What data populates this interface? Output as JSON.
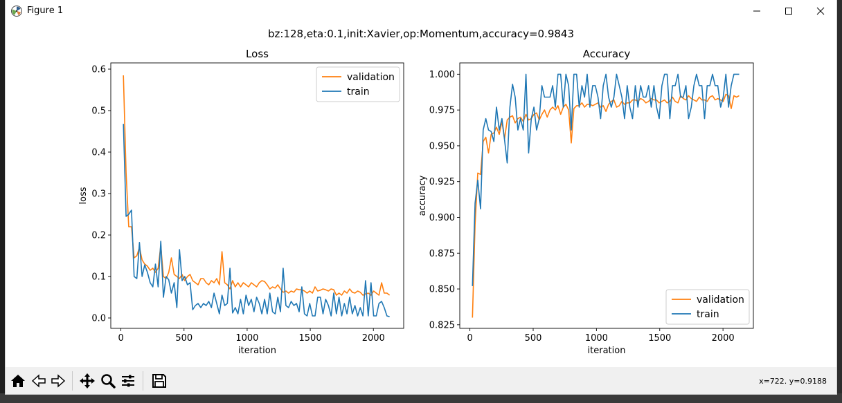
{
  "window": {
    "title": "Figure 1",
    "minimize_icon": "minimize-icon",
    "maximize_icon": "maximize-icon",
    "close_icon": "close-icon"
  },
  "figure": {
    "suptitle": "bz:128,eta:0.1,init:Xavier,op:Momentum,accuracy=0.9843"
  },
  "toolbar": {
    "buttons": [
      "home-icon",
      "back-icon",
      "forward-icon",
      "pan-icon",
      "zoom-icon",
      "configure-subplots-icon",
      "save-icon"
    ],
    "coordinates": "x=722. y=0.9188"
  },
  "colors": {
    "validation": "#ff7f0e",
    "train": "#1f77b4"
  },
  "chart_data": [
    {
      "type": "line",
      "title": "Loss",
      "xlabel": "iteration",
      "ylabel": "loss",
      "xlim": [
        -80,
        2240
      ],
      "ylim": [
        -0.025,
        0.615
      ],
      "xticks": [
        0,
        500,
        1000,
        1500,
        2000
      ],
      "yticks": [
        0.0,
        0.1,
        0.2,
        0.3,
        0.4,
        0.5,
        0.6
      ],
      "ytick_labels": [
        "0.0",
        "0.1",
        "0.2",
        "0.3",
        "0.4",
        "0.5",
        "0.6"
      ],
      "legend": "top-right",
      "grid": false,
      "x": [
        20,
        41,
        62,
        84,
        105,
        126,
        147,
        168,
        189,
        210,
        232,
        253,
        274,
        295,
        316,
        337,
        358,
        379,
        400,
        422,
        443,
        464,
        485,
        506,
        527,
        548,
        569,
        590,
        611,
        633,
        654,
        675,
        696,
        717,
        738,
        759,
        780,
        801,
        822,
        843,
        864,
        885,
        906,
        927,
        948,
        970,
        991,
        1012,
        1033,
        1054,
        1075,
        1096,
        1117,
        1138,
        1159,
        1180,
        1201,
        1222,
        1243,
        1264,
        1285,
        1307,
        1328,
        1349,
        1370,
        1391,
        1412,
        1433,
        1454,
        1475,
        1496,
        1517,
        1538,
        1559,
        1580,
        1601,
        1622,
        1644,
        1665,
        1686,
        1707,
        1728,
        1749,
        1770,
        1791,
        1812,
        1833,
        1854,
        1875,
        1896,
        1917,
        1938,
        1959,
        1981,
        2002,
        2023,
        2044,
        2065,
        2086,
        2107,
        2128
      ],
      "series": [
        {
          "name": "validation",
          "values": [
            0.585,
            0.35,
            0.22,
            0.22,
            0.145,
            0.15,
            0.17,
            0.14,
            0.13,
            0.125,
            0.115,
            0.12,
            0.11,
            0.12,
            0.175,
            0.1,
            0.095,
            0.11,
            0.145,
            0.105,
            0.1,
            0.095,
            0.105,
            0.09,
            0.1,
            0.105,
            0.09,
            0.085,
            0.08,
            0.095,
            0.095,
            0.085,
            0.08,
            0.09,
            0.085,
            0.095,
            0.08,
            0.16,
            0.085,
            0.08,
            0.07,
            0.09,
            0.075,
            0.085,
            0.075,
            0.085,
            0.08,
            0.075,
            0.085,
            0.08,
            0.075,
            0.085,
            0.09,
            0.088,
            0.08,
            0.07,
            0.075,
            0.072,
            0.08,
            0.07,
            0.062,
            0.065,
            0.06,
            0.065,
            0.062,
            0.07,
            0.068,
            0.068,
            0.065,
            0.06,
            0.065,
            0.06,
            0.075,
            0.065,
            0.067,
            0.07,
            0.068,
            0.065,
            0.07,
            0.068,
            0.055,
            0.06,
            0.055,
            0.065,
            0.06,
            0.07,
            0.062,
            0.06,
            0.065,
            0.062,
            0.055,
            0.058,
            0.06,
            0.055,
            0.065,
            0.06,
            0.055,
            0.085,
            0.06,
            0.06,
            0.055
          ]
        },
        {
          "name": "train",
          "values": [
            0.468,
            0.245,
            0.25,
            0.26,
            0.1,
            0.095,
            0.182,
            0.1,
            0.128,
            0.11,
            0.085,
            0.075,
            0.13,
            0.075,
            0.185,
            0.05,
            0.1,
            0.092,
            0.06,
            0.085,
            0.025,
            0.165,
            0.09,
            0.1,
            0.08,
            0.085,
            0.02,
            0.03,
            0.035,
            0.025,
            0.035,
            0.03,
            0.04,
            0.025,
            0.06,
            0.035,
            0.01,
            0.055,
            0.03,
            0.035,
            0.12,
            0.012,
            0.025,
            0.01,
            0.045,
            0.01,
            0.055,
            0.03,
            0.045,
            0.015,
            0.05,
            0.035,
            0.01,
            0.045,
            0.01,
            0.06,
            0.015,
            0.01,
            0.05,
            0.015,
            0.12,
            0.03,
            0.025,
            0.04,
            0.03,
            0.035,
            0.015,
            0.075,
            0.01,
            0.005,
            0.035,
            0.005,
            0.005,
            0.05,
            0.05,
            0.01,
            0.045,
            0.03,
            0.005,
            0.06,
            0.01,
            0.05,
            0.005,
            0.035,
            0.01,
            0.05,
            0.01,
            0.03,
            0.005,
            0.025,
            0.005,
            0.09,
            0.005,
            0.085,
            0.005,
            0.005,
            0.035,
            0.04,
            0.025,
            0.005,
            0.003
          ]
        }
      ]
    },
    {
      "type": "line",
      "title": "Accuracy",
      "xlabel": "iteration",
      "ylabel": "accuracy",
      "xlim": [
        -80,
        2240
      ],
      "ylim": [
        0.8225,
        1.0079
      ],
      "xticks": [
        0,
        500,
        1000,
        1500,
        2000
      ],
      "yticks": [
        0.825,
        0.85,
        0.875,
        0.9,
        0.925,
        0.95,
        0.975,
        1.0
      ],
      "ytick_labels": [
        "0.825",
        "0.850",
        "0.875",
        "0.900",
        "0.925",
        "0.950",
        "0.975",
        "1.000"
      ],
      "legend": "bottom-right",
      "grid": false,
      "x": [
        20,
        41,
        62,
        84,
        105,
        126,
        147,
        168,
        189,
        210,
        232,
        253,
        274,
        295,
        316,
        337,
        358,
        379,
        400,
        422,
        443,
        464,
        485,
        506,
        527,
        548,
        569,
        590,
        611,
        633,
        654,
        675,
        696,
        717,
        738,
        759,
        780,
        801,
        822,
        843,
        864,
        885,
        906,
        927,
        948,
        970,
        991,
        1012,
        1033,
        1054,
        1075,
        1096,
        1117,
        1138,
        1159,
        1180,
        1201,
        1222,
        1243,
        1264,
        1285,
        1307,
        1328,
        1349,
        1370,
        1391,
        1412,
        1433,
        1454,
        1475,
        1496,
        1517,
        1538,
        1559,
        1580,
        1601,
        1622,
        1644,
        1665,
        1686,
        1707,
        1728,
        1749,
        1770,
        1791,
        1812,
        1833,
        1854,
        1875,
        1896,
        1917,
        1938,
        1959,
        1981,
        2002,
        2023,
        2044,
        2065,
        2086,
        2107,
        2128
      ],
      "series": [
        {
          "name": "validation",
          "values": [
            0.83,
            0.895,
            0.931,
            0.93,
            0.953,
            0.956,
            0.945,
            0.958,
            0.959,
            0.963,
            0.958,
            0.967,
            0.955,
            0.968,
            0.97,
            0.971,
            0.966,
            0.969,
            0.97,
            0.967,
            0.972,
            0.968,
            0.969,
            0.972,
            0.973,
            0.968,
            0.972,
            0.975,
            0.97,
            0.975,
            0.977,
            0.975,
            0.978,
            0.972,
            0.977,
            0.979,
            0.975,
            0.952,
            0.976,
            0.978,
            0.978,
            0.98,
            0.977,
            0.979,
            0.979,
            0.978,
            0.979,
            0.98,
            0.977,
            0.978,
            0.974,
            0.979,
            0.981,
            0.982,
            0.977,
            0.978,
            0.981,
            0.979,
            0.98,
            0.98,
            0.982,
            0.982,
            0.981,
            0.983,
            0.982,
            0.98,
            0.981,
            0.983,
            0.982,
            0.982,
            0.98,
            0.981,
            0.982,
            0.98,
            0.981,
            0.984,
            0.981,
            0.98,
            0.985,
            0.983,
            0.982,
            0.985,
            0.983,
            0.982,
            0.981,
            0.984,
            0.982,
            0.982,
            0.981,
            0.984,
            0.985,
            0.982,
            0.983,
            0.982,
            0.981,
            0.986,
            0.985,
            0.976,
            0.985,
            0.984,
            0.985
          ]
        },
        {
          "name": "train",
          "values": [
            0.852,
            0.91,
            0.926,
            0.906,
            0.961,
            0.969,
            0.961,
            0.96,
            0.953,
            0.977,
            0.961,
            0.969,
            0.954,
            0.938,
            0.977,
            0.993,
            0.984,
            0.961,
            0.969,
            0.961,
            1.0,
            0.945,
            0.969,
            0.977,
            0.961,
            0.969,
            0.992,
            0.984,
            0.984,
            0.984,
            0.992,
            0.977,
            1.0,
            1.0,
            0.977,
            1.0,
            0.992,
            0.961,
            1.0,
            1.0,
            0.977,
            0.992,
            0.984,
            1.0,
            0.977,
            0.992,
            0.992,
            0.984,
            0.969,
            0.992,
            1.0,
            0.984,
            0.977,
            0.984,
            1.0,
            0.992,
            0.984,
            0.969,
            0.992,
            0.977,
            0.969,
            0.992,
            0.977,
            0.992,
            0.984,
            0.984,
            0.992,
            0.977,
            0.992,
            0.977,
            0.969,
            0.992,
            1.0,
            1.0,
            0.969,
            0.992,
            0.992,
            1.0,
            0.984,
            0.984,
            0.992,
            0.969,
            0.977,
            0.992,
            1.0,
            0.992,
            0.992,
            0.969,
            0.992,
            0.992,
            1.0,
            0.992,
            0.992,
            0.977,
            0.984,
            1.0,
            0.977,
            0.992,
            1.0,
            1.0,
            1.0
          ]
        }
      ]
    }
  ]
}
